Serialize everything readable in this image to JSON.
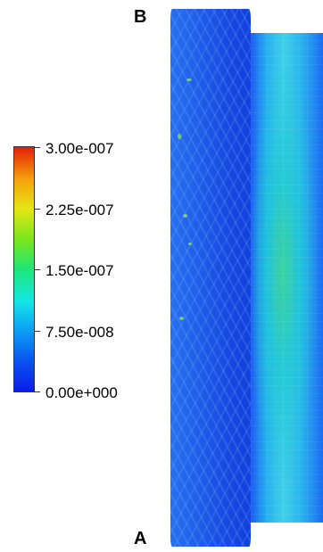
{
  "labels": {
    "top": "B",
    "bottom": "A"
  },
  "colorbar": {
    "ticks": [
      "3.00e-007",
      "2.25e-007",
      "1.50e-007",
      "7.50e-008",
      "0.00e+000"
    ],
    "colors": {
      "min": "#0a1ee6",
      "low": "#14e6e6",
      "mid": "#1ee678",
      "high": "#e6e614",
      "max": "#e61e0a"
    }
  }
}
